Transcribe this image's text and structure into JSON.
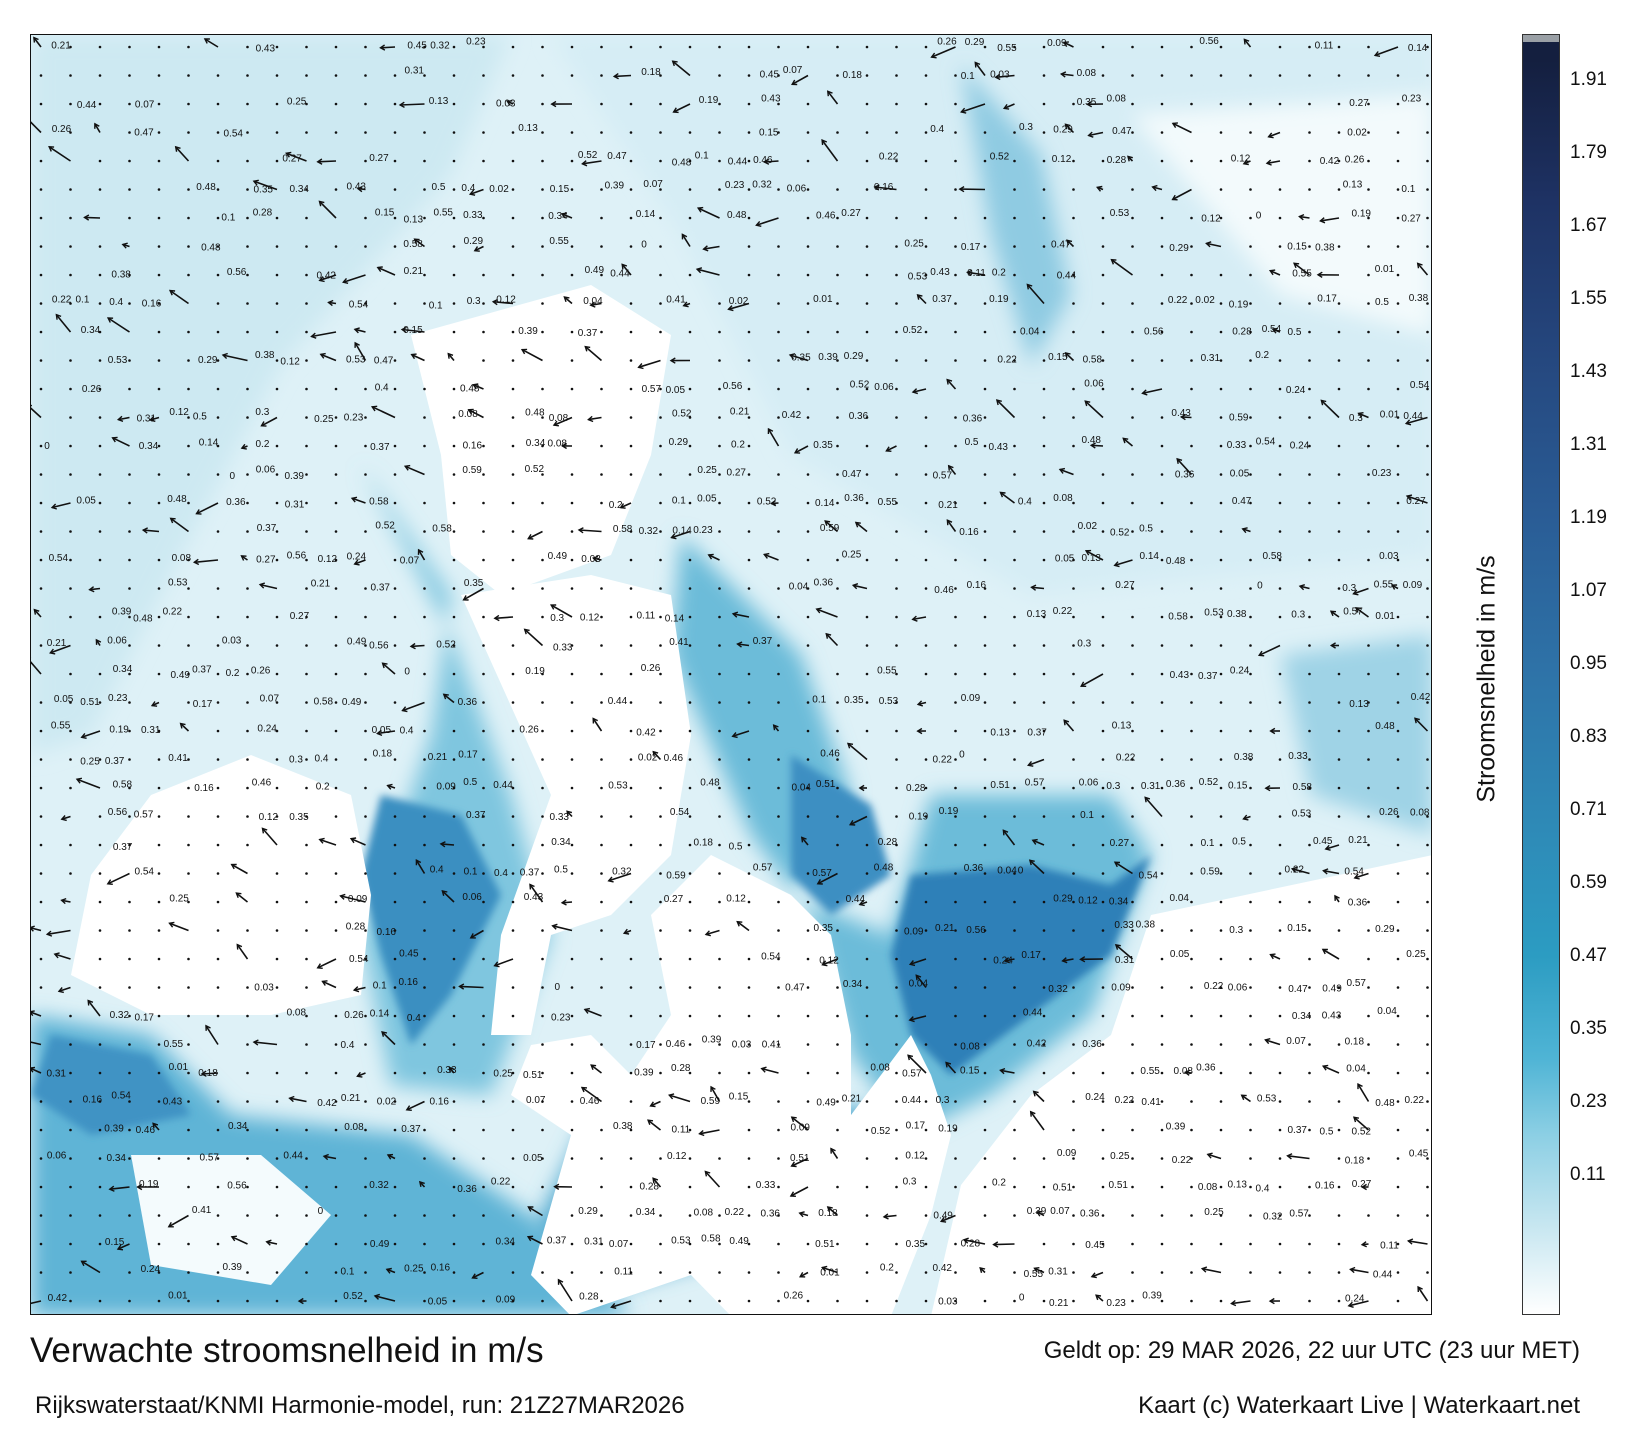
{
  "title": "Verwachte stroomsnelheid in m/s",
  "subtitle": "Rijkswaterstaat/KNMI Harmonie-model, run: 21Z27MAR2026",
  "valid_time": "Geldt op: 29 MAR 2026, 22 uur UTC (23 uur MET)",
  "credits": "Kaart (c) Waterkaart Live | Waterkaart.net",
  "legend": {
    "title": "Stroomsnelheid in m/s",
    "ticks": [
      "1.91",
      "1.79",
      "1.67",
      "1.55",
      "1.43",
      "1.31",
      "1.19",
      "1.07",
      "0.95",
      "0.83",
      "0.71",
      "0.59",
      "0.47",
      "0.35",
      "0.23",
      "0.11"
    ],
    "colors": {
      "low": "#ffffff",
      "mid": "#2c9cc2",
      "high": "#141f3f"
    }
  },
  "map_labels": [
    "0.12",
    "0.13",
    "0.14",
    "0.11",
    "0.09",
    "0.08",
    "0.07",
    "0.06",
    "0.05",
    "0.04",
    "0.03",
    "0.02",
    "0.01",
    "0.19",
    "0.18",
    "0.17",
    "0.16",
    "0.15",
    "0.2",
    "0.21",
    "0.22",
    "0.23",
    "0.24",
    "0.25",
    "0.26",
    "0.27",
    "0.28",
    "0.29",
    "0.3",
    "0.31",
    "0.32",
    "0.33",
    "0.34",
    "0.35",
    "0.36",
    "0.37",
    "0.38",
    "0.39",
    "0.4",
    "0.41",
    "0.42",
    "0.43",
    "0.44",
    "0.45",
    "0.46",
    "0.47",
    "0.48",
    "0.49",
    "0.5",
    "0.51",
    "0.52",
    "0.53",
    "0.54",
    "0.55",
    "0.56",
    "0.57",
    "0.58",
    "0.59",
    "0.1",
    "0"
  ]
}
